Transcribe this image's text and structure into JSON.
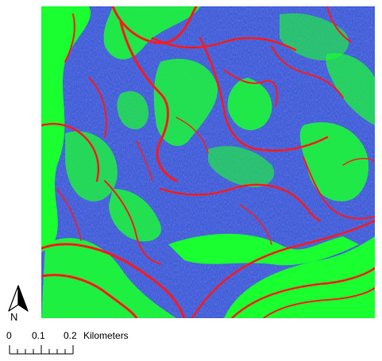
{
  "map": {
    "colors": {
      "base_blue": "#3a5fd6",
      "green": "#19ff2f",
      "red": "#ff1a1a"
    }
  },
  "north_arrow": {
    "label": "N"
  },
  "scalebar": {
    "ticks": [
      "0",
      "0.1",
      "0.2"
    ],
    "units": "Kilometers"
  }
}
